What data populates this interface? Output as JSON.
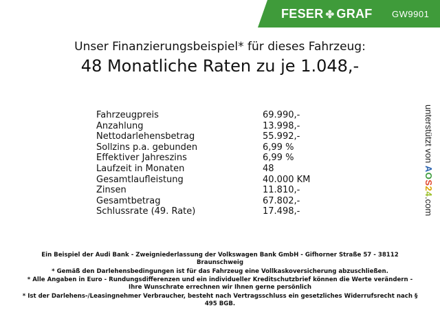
{
  "header": {
    "brand_left": "FESER",
    "brand_right": "GRAF",
    "brand_icon": "clover-icon",
    "code": "GW9901",
    "banner_color": "#3f9b3a"
  },
  "title": {
    "line1": "Unser Finanzierungsbeispiel* für dieses Fahrzeug:",
    "line2": "48 Monatliche Raten zu je 1.048,-"
  },
  "table": [
    {
      "label": "Fahrzeugpreis",
      "value": "69.990,-"
    },
    {
      "label": "Anzahlung",
      "value": "13.998,-"
    },
    {
      "label": "Nettodarlehensbetrag",
      "value": "55.992,-"
    },
    {
      "label": "Sollzins p.a. gebunden",
      "value": "6,99 %"
    },
    {
      "label": "Effektiver Jahreszins",
      "value": "6,99 %"
    },
    {
      "label": "Laufzeit in Monaten",
      "value": "48"
    },
    {
      "label": "Gesamtlaufleistung",
      "value": "40.000 KM"
    },
    {
      "label": "Zinsen",
      "value": "11.810,-"
    },
    {
      "label": "Gesamtbetrag",
      "value": "67.802,-"
    },
    {
      "label": "Schlussrate (49. Rate)",
      "value": "17.498,-"
    }
  ],
  "side": {
    "prefix": "unterstützt von",
    "logo": "AOS24",
    "suffix": ".com"
  },
  "footer": [
    "Ein Beispiel der Audi Bank - Zweigniederlassung der Volkswagen Bank GmbH - Gifhorner Straße 57 - 38112 Braunschweig",
    "* Gemäß den Darlehensbedingungen ist für das Fahrzeug eine Vollkaskoversicherung abzuschließen.",
    "* Alle Angaben in Euro - Rundungsdifferenzen und ein individueller Kreditschutzbrief können die Werte verändern - Ihre Wunschrate errechnen wir Ihnen gerne persönlich",
    "* Ist der Darlehens-/Leasingnehmer Verbraucher, besteht nach Vertragsschluss ein gesetzliches Widerrufsrecht nach § 495 BGB."
  ]
}
